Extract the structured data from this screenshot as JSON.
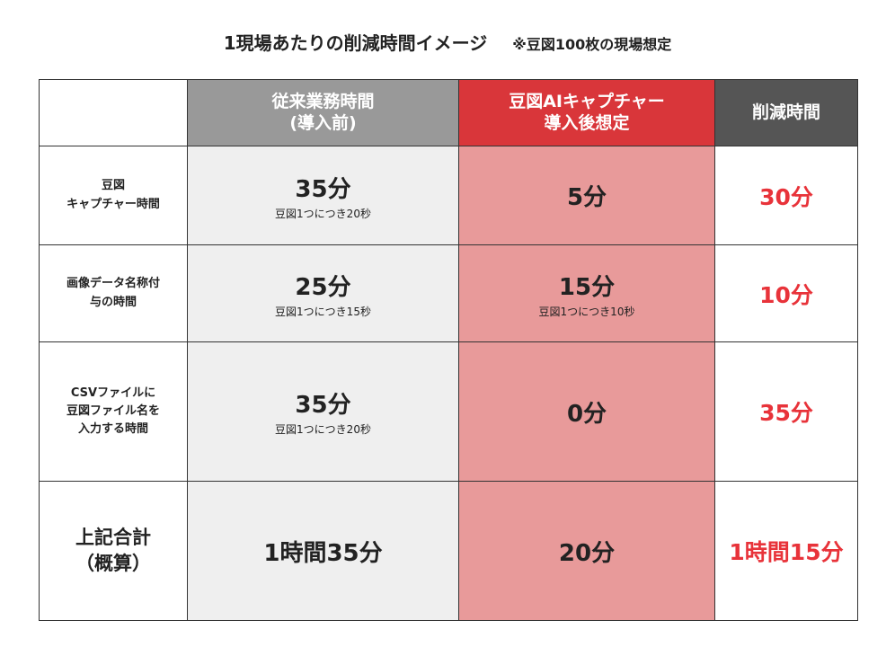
{
  "title": "1現場あたりの削減時間イメージ",
  "note": "※豆図100枚の現場想定",
  "table": {
    "header": [
      [
        "従来業務時間",
        "(導入前)"
      ],
      [
        "豆図AIキャプチャー",
        "導入後想定"
      ],
      [
        "削減時間"
      ]
    ],
    "rows": [
      {
        "label": [
          "豆図",
          "キャプチャー時間"
        ],
        "before": {
          "main": "35分",
          "sub": "豆図1つにつき20秒"
        },
        "after": {
          "main": "5分"
        },
        "reduction": "30分"
      },
      {
        "label": [
          "画像データ名称付",
          "与の時間"
        ],
        "before": {
          "main": "25分",
          "sub": "豆図1つにつき15秒"
        },
        "after": {
          "main": "15分",
          "sub": "豆図1つにつき10秒"
        },
        "reduction": "10分"
      },
      {
        "label": [
          "CSVファイルに",
          "豆図ファイル名を",
          "入力する時間"
        ],
        "before": {
          "main": "35分",
          "sub": "豆図1つにつき20秒"
        },
        "after": {
          "main": "0分"
        },
        "reduction": "35分"
      },
      {
        "label": [
          "上記合計",
          "（概算）"
        ],
        "before": {
          "main": "1時間35分"
        },
        "after": {
          "main": "20分"
        },
        "reduction": "1時間15分"
      }
    ]
  }
}
